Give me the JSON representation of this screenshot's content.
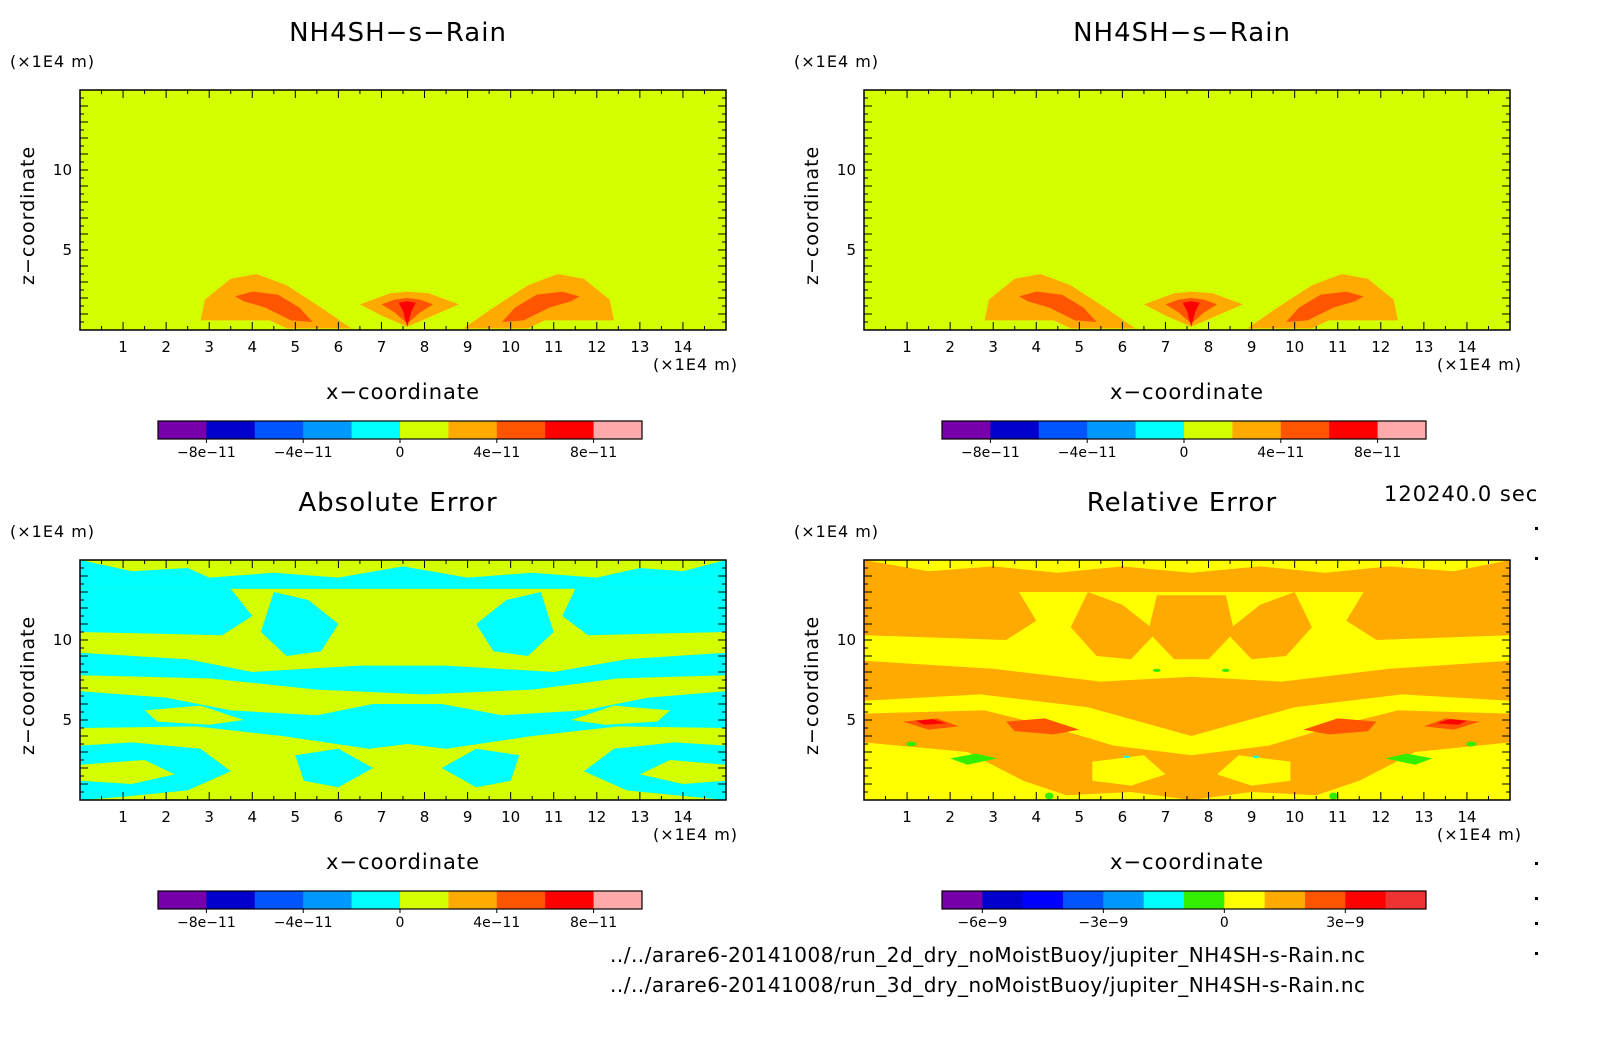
{
  "x_unit": "(×1E4 m)",
  "y_unit": "(×1E4 m)",
  "x_label": "x−coordinate",
  "y_label": "z−coordinate",
  "timestamp": "120240.0 sec",
  "paths": [
    "../../arare6-20141008/run_2d_dry_noMoistBuoy/jupiter_NH4SH-s-Rain.nc",
    "../../arare6-20141008/run_3d_dry_noMoistBuoy/jupiter_NH4SH-s-Rain.nc"
  ],
  "colors": {
    "base_yellowgreen": "#d4ff00",
    "cyan": "#00ffff",
    "yellow": "#ffff00",
    "orange": "#ffaa00",
    "red_orange": "#ff5500",
    "red": "#ff0000",
    "green": "#33ee00"
  },
  "chart_data": [
    {
      "type": "heatmap",
      "title": "NH4SH−s−Rain",
      "xlabel": "x−coordinate",
      "ylabel": "z−coordinate",
      "xlim": [
        0,
        15
      ],
      "ylim": [
        0,
        15
      ],
      "x_ticks": [
        "1",
        "2",
        "3",
        "4",
        "5",
        "6",
        "7",
        "8",
        "9",
        "10",
        "11",
        "12",
        "13",
        "14"
      ],
      "y_ticks": [
        "5",
        "10"
      ],
      "colorbar": {
        "colors": [
          "#7700aa",
          "#0000cc",
          "#0055ff",
          "#0099ff",
          "#00ffff",
          "#d4ff00",
          "#ffaa00",
          "#ff5500",
          "#ff0000",
          "#ffaaaa"
        ],
        "labels": [
          "−8e−11",
          "−4e−11",
          "0",
          "4e−11",
          "8e−11"
        ]
      }
    },
    {
      "type": "heatmap",
      "title": "NH4SH−s−Rain",
      "xlabel": "x−coordinate",
      "ylabel": "z−coordinate",
      "xlim": [
        0,
        15
      ],
      "ylim": [
        0,
        15
      ],
      "x_ticks": [
        "1",
        "2",
        "3",
        "4",
        "5",
        "6",
        "7",
        "8",
        "9",
        "10",
        "11",
        "12",
        "13",
        "14"
      ],
      "y_ticks": [
        "5",
        "10"
      ],
      "colorbar": {
        "colors": [
          "#7700aa",
          "#0000cc",
          "#0055ff",
          "#0099ff",
          "#00ffff",
          "#d4ff00",
          "#ffaa00",
          "#ff5500",
          "#ff0000",
          "#ffaaaa"
        ],
        "labels": [
          "−8e−11",
          "−4e−11",
          "0",
          "4e−11",
          "8e−11"
        ]
      }
    },
    {
      "type": "heatmap",
      "title": "Absolute Error",
      "xlabel": "x−coordinate",
      "ylabel": "z−coordinate",
      "xlim": [
        0,
        15
      ],
      "ylim": [
        0,
        15
      ],
      "x_ticks": [
        "1",
        "2",
        "3",
        "4",
        "5",
        "6",
        "7",
        "8",
        "9",
        "10",
        "11",
        "12",
        "13",
        "14"
      ],
      "y_ticks": [
        "5",
        "10"
      ],
      "colorbar": {
        "colors": [
          "#7700aa",
          "#0000cc",
          "#0055ff",
          "#0099ff",
          "#00ffff",
          "#d4ff00",
          "#ffaa00",
          "#ff5500",
          "#ff0000",
          "#ffaaaa"
        ],
        "labels": [
          "−8e−11",
          "−4e−11",
          "0",
          "4e−11",
          "8e−11"
        ]
      }
    },
    {
      "type": "heatmap",
      "title": "Relative Error",
      "xlabel": "x−coordinate",
      "ylabel": "z−coordinate",
      "xlim": [
        0,
        15
      ],
      "ylim": [
        0,
        15
      ],
      "x_ticks": [
        "1",
        "2",
        "3",
        "4",
        "5",
        "6",
        "7",
        "8",
        "9",
        "10",
        "11",
        "12",
        "13",
        "14"
      ],
      "y_ticks": [
        "5",
        "10"
      ],
      "colorbar": {
        "colors": [
          "#7700aa",
          "#0000cc",
          "#0000ff",
          "#0055ff",
          "#0099ff",
          "#00ffff",
          "#33ee00",
          "#ffff00",
          "#ffaa00",
          "#ff5500",
          "#ff0000",
          "#ee3333"
        ],
        "labels": [
          "−6e−9",
          "−3e−9",
          "0",
          "3e−9"
        ]
      }
    }
  ]
}
